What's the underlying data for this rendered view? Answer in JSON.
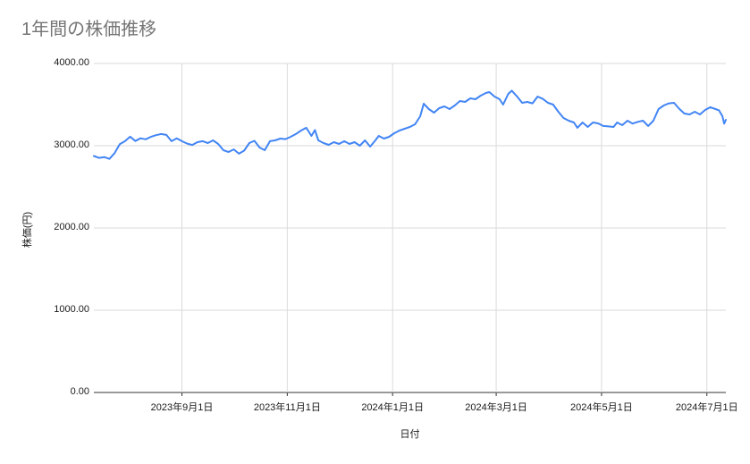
{
  "title": {
    "text": "1年間の株価推移",
    "color": "#757575"
  },
  "chart_data": {
    "type": "line",
    "title": "1年間の株価推移",
    "xlabel": "日付",
    "ylabel": "株価(円)",
    "ylim": [
      0,
      4000
    ],
    "x_range": [
      "2023-07-12",
      "2024-07-12"
    ],
    "grid": true,
    "legend": "none",
    "line_color": "#4285f4",
    "grid_color": "#dadada",
    "axis_color": "#333333",
    "tick_text_color": "#1a1a1a",
    "y_ticks": [
      {
        "value": 0,
        "label": "0.00"
      },
      {
        "value": 1000,
        "label": "1000.00"
      },
      {
        "value": 2000,
        "label": "2000.00"
      },
      {
        "value": 3000,
        "label": "3000.00"
      },
      {
        "value": 4000,
        "label": "4000.00"
      }
    ],
    "x_ticks": [
      {
        "date": "2023-09-01",
        "label": "2023年9月1日"
      },
      {
        "date": "2023-11-01",
        "label": "2023年11月1日"
      },
      {
        "date": "2024-01-01",
        "label": "2024年1月1日"
      },
      {
        "date": "2024-03-01",
        "label": "2024年3月1日"
      },
      {
        "date": "2024-05-01",
        "label": "2024年5月1日"
      },
      {
        "date": "2024-07-01",
        "label": "2024年7月1日"
      }
    ],
    "series": [
      {
        "x_dates": [
          "2023-07-12",
          "2023-07-15",
          "2023-07-18",
          "2023-07-21",
          "2023-07-24",
          "2023-07-27",
          "2023-07-30",
          "2023-08-02",
          "2023-08-05",
          "2023-08-08",
          "2023-08-11",
          "2023-08-14",
          "2023-08-17",
          "2023-08-20",
          "2023-08-23",
          "2023-08-26",
          "2023-08-29",
          "2023-09-01",
          "2023-09-04",
          "2023-09-07",
          "2023-09-10",
          "2023-09-13",
          "2023-09-16",
          "2023-09-19",
          "2023-09-22",
          "2023-09-25",
          "2023-09-28",
          "2023-10-01",
          "2023-10-04",
          "2023-10-07",
          "2023-10-10",
          "2023-10-13",
          "2023-10-16",
          "2023-10-19",
          "2023-10-22",
          "2023-10-25",
          "2023-10-28",
          "2023-10-31",
          "2023-11-03",
          "2023-11-06",
          "2023-11-09",
          "2023-11-12",
          "2023-11-15",
          "2023-11-17",
          "2023-11-19",
          "2023-11-22",
          "2023-11-25",
          "2023-11-28",
          "2023-12-01",
          "2023-12-04",
          "2023-12-07",
          "2023-12-10",
          "2023-12-13",
          "2023-12-16",
          "2023-12-19",
          "2023-12-22",
          "2023-12-24",
          "2023-12-27",
          "2023-12-30",
          "2024-01-02",
          "2024-01-05",
          "2024-01-08",
          "2024-01-11",
          "2024-01-14",
          "2024-01-17",
          "2024-01-19",
          "2024-01-22",
          "2024-01-25",
          "2024-01-28",
          "2024-01-31",
          "2024-02-03",
          "2024-02-06",
          "2024-02-09",
          "2024-02-12",
          "2024-02-15",
          "2024-02-18",
          "2024-02-21",
          "2024-02-24",
          "2024-02-26",
          "2024-02-29",
          "2024-03-03",
          "2024-03-05",
          "2024-03-08",
          "2024-03-10",
          "2024-03-13",
          "2024-03-16",
          "2024-03-19",
          "2024-03-22",
          "2024-03-25",
          "2024-03-28",
          "2024-03-31",
          "2024-04-03",
          "2024-04-06",
          "2024-04-09",
          "2024-04-12",
          "2024-04-15",
          "2024-04-17",
          "2024-04-20",
          "2024-04-23",
          "2024-04-26",
          "2024-04-29",
          "2024-05-02",
          "2024-05-05",
          "2024-05-08",
          "2024-05-10",
          "2024-05-13",
          "2024-05-16",
          "2024-05-19",
          "2024-05-22",
          "2024-05-25",
          "2024-05-28",
          "2024-05-31",
          "2024-06-03",
          "2024-06-06",
          "2024-06-09",
          "2024-06-12",
          "2024-06-15",
          "2024-06-18",
          "2024-06-21",
          "2024-06-24",
          "2024-06-27",
          "2024-06-30",
          "2024-07-03",
          "2024-07-06",
          "2024-07-08",
          "2024-07-10",
          "2024-07-11",
          "2024-07-12"
        ],
        "y_values": [
          2875,
          2852,
          2862,
          2840,
          2910,
          3020,
          3055,
          3110,
          3058,
          3090,
          3078,
          3108,
          3128,
          3142,
          3131,
          3055,
          3090,
          3055,
          3026,
          3010,
          3044,
          3055,
          3033,
          3065,
          3022,
          2946,
          2924,
          2955,
          2903,
          2940,
          3033,
          3060,
          2978,
          2946,
          3055,
          3065,
          3087,
          3080,
          3109,
          3142,
          3185,
          3218,
          3120,
          3190,
          3065,
          3033,
          3011,
          3044,
          3022,
          3055,
          3022,
          3044,
          3000,
          3065,
          2989,
          3065,
          3120,
          3087,
          3109,
          3152,
          3185,
          3207,
          3228,
          3261,
          3359,
          3511,
          3446,
          3402,
          3457,
          3478,
          3446,
          3489,
          3543,
          3533,
          3576,
          3565,
          3609,
          3641,
          3652,
          3598,
          3565,
          3500,
          3630,
          3670,
          3600,
          3522,
          3533,
          3515,
          3598,
          3570,
          3522,
          3500,
          3413,
          3337,
          3304,
          3283,
          3218,
          3283,
          3228,
          3283,
          3272,
          3240,
          3235,
          3228,
          3283,
          3250,
          3304,
          3270,
          3290,
          3304,
          3240,
          3304,
          3446,
          3489,
          3515,
          3522,
          3450,
          3391,
          3380,
          3413,
          3380,
          3435,
          3468,
          3446,
          3430,
          3360,
          3268,
          3315
        ]
      }
    ]
  }
}
